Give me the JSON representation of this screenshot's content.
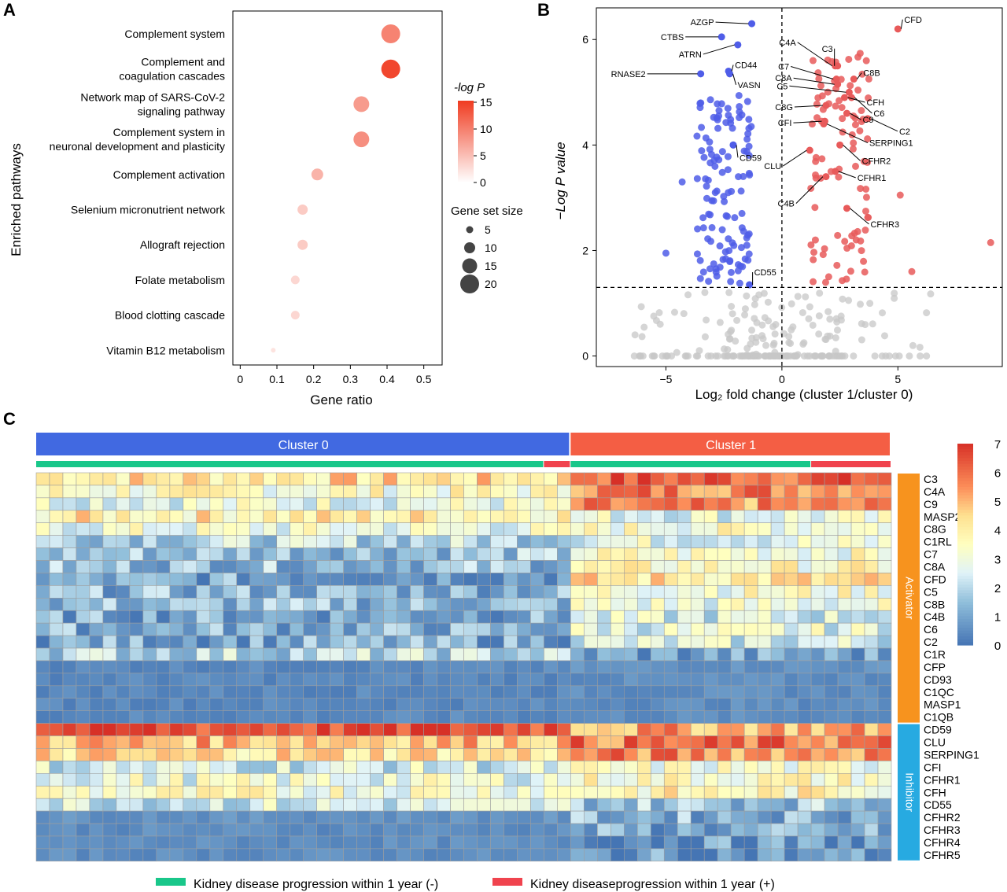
{
  "panels": {
    "a": "A",
    "b": "B",
    "c": "C"
  },
  "chart_data": [
    {
      "type": "scatter",
      "kind": "dot plot",
      "xlabel": "Gene ratio",
      "ylabel": "Enriched pathways",
      "xlim": [
        -0.02,
        0.55
      ],
      "xticks": [
        0,
        0.1,
        0.2,
        0.3,
        0.4,
        0.5
      ],
      "xtick_labels": [
        "0",
        "0.1",
        "0.2",
        "0.3",
        "0.4",
        "0.5"
      ],
      "categories": [
        "Complement system",
        "Complement and\ncoagulation cascades",
        "Network map of SARS-CoV-2\nsignaling pathway",
        "Complement system in\nneuronal development and plasticity",
        "Complement activation",
        "Selenium micronutrient network",
        "Allograft rejection",
        "Folate metabolism",
        "Blood clotting cascade",
        "Vitamin B12 metabolism"
      ],
      "gene_ratio": [
        0.41,
        0.41,
        0.33,
        0.33,
        0.21,
        0.17,
        0.17,
        0.15,
        0.15,
        0.09
      ],
      "neg_log_p": [
        9,
        14,
        7,
        8,
        5,
        3,
        3,
        2,
        2,
        1
      ],
      "gene_set_size": [
        20,
        20,
        16,
        16,
        11,
        9,
        9,
        7,
        7,
        2
      ],
      "color_legend": {
        "title": "-log P",
        "ticks": [
          0,
          5,
          10,
          15
        ],
        "colors": [
          "#ffffff",
          "#f03b20"
        ]
      },
      "size_legend": {
        "title": "Gene set size",
        "values": [
          5,
          10,
          15,
          20
        ]
      },
      "grid": false
    },
    {
      "type": "scatter",
      "kind": "volcano plot",
      "xlabel": "Log₂ fold change (cluster 1/cluster 0)",
      "ylabel": "−Log P value",
      "xlim": [
        -8,
        9.5
      ],
      "ylim": [
        -0.2,
        6.6
      ],
      "xticks": [
        -5,
        0,
        5
      ],
      "xtick_labels": [
        "−5",
        "0",
        "5"
      ],
      "yticks": [
        0,
        2,
        4,
        6
      ],
      "ytick_labels": [
        "0",
        "2",
        "4",
        "6"
      ],
      "threshold_y": 1.3,
      "colors": {
        "down": "#4f5de8",
        "up": "#e85a5a",
        "ns": "#c7c7c7"
      },
      "labeled_genes": [
        {
          "name": "AZGP",
          "x": -1.3,
          "y": 6.3,
          "dir": "down"
        },
        {
          "name": "CTBS",
          "x": -2.6,
          "y": 6.05,
          "dir": "down"
        },
        {
          "name": "ATRN",
          "x": -1.9,
          "y": 5.9,
          "dir": "down"
        },
        {
          "name": "CD44",
          "x": -2.3,
          "y": 5.4,
          "dir": "down"
        },
        {
          "name": "VASN",
          "x": -2.25,
          "y": 5.35,
          "dir": "down"
        },
        {
          "name": "RNASE2",
          "x": -3.5,
          "y": 5.35,
          "dir": "down"
        },
        {
          "name": "CD59",
          "x": -2.1,
          "y": 4.0,
          "dir": "down"
        },
        {
          "name": "CD55",
          "x": -1.4,
          "y": 1.35,
          "dir": "down"
        },
        {
          "name": "CFD",
          "x": 5.0,
          "y": 6.2,
          "dir": "up"
        },
        {
          "name": "C3",
          "x": 2.4,
          "y": 5.5,
          "dir": "up"
        },
        {
          "name": "C4A",
          "x": 2.3,
          "y": 5.5,
          "dir": "up"
        },
        {
          "name": "C7",
          "x": 2.35,
          "y": 5.25,
          "dir": "up"
        },
        {
          "name": "C8B",
          "x": 3.1,
          "y": 5.25,
          "dir": "up"
        },
        {
          "name": "C8A",
          "x": 2.4,
          "y": 5.15,
          "dir": "up"
        },
        {
          "name": "C5",
          "x": 2.9,
          "y": 5.0,
          "dir": "up"
        },
        {
          "name": "CFH",
          "x": 2.7,
          "y": 4.9,
          "dir": "up"
        },
        {
          "name": "C6",
          "x": 3.0,
          "y": 4.9,
          "dir": "up"
        },
        {
          "name": "C8G",
          "x": 1.9,
          "y": 4.75,
          "dir": "up"
        },
        {
          "name": "C9",
          "x": 2.8,
          "y": 4.6,
          "dir": "up"
        },
        {
          "name": "CFI",
          "x": 1.85,
          "y": 4.45,
          "dir": "up"
        },
        {
          "name": "C2",
          "x": 3.7,
          "y": 4.5,
          "dir": "up"
        },
        {
          "name": "SERPING1",
          "x": 1.8,
          "y": 4.4,
          "dir": "up"
        },
        {
          "name": "CFHR2",
          "x": 2.5,
          "y": 4.0,
          "dir": "up"
        },
        {
          "name": "CLU",
          "x": 1.2,
          "y": 3.9,
          "dir": "up"
        },
        {
          "name": "CFHR1",
          "x": 2.3,
          "y": 3.5,
          "dir": "up"
        },
        {
          "name": "C4B",
          "x": 1.9,
          "y": 3.4,
          "dir": "up"
        },
        {
          "name": "CFHR3",
          "x": 2.8,
          "y": 2.8,
          "dir": "up"
        }
      ],
      "grid": false
    },
    {
      "type": "heatmap",
      "column_groups": [
        {
          "name": "Cluster 0",
          "columns": 40,
          "color": "#4169e1"
        },
        {
          "name": "Cluster 1",
          "columns": 24,
          "color": "#f45e44"
        }
      ],
      "annotation_bar": {
        "colors": {
          "neg": "#19c78a",
          "pos": "#f0434e"
        },
        "segments": [
          {
            "start": 0,
            "end": 38,
            "status": "neg"
          },
          {
            "start": 38,
            "end": 40,
            "status": "pos"
          },
          {
            "start": 40,
            "end": 58,
            "status": "neg"
          },
          {
            "start": 58,
            "end": 64,
            "status": "pos"
          }
        ]
      },
      "rows": [
        "C3",
        "C4A",
        "C9",
        "MASP2",
        "C8G",
        "C1RL",
        "C7",
        "C8A",
        "CFD",
        "C5",
        "C8B",
        "C4B",
        "C6",
        "C2",
        "C1R",
        "CFP",
        "CD93",
        "C1QC",
        "MASP1",
        "C1QB",
        "CD59",
        "CLU",
        "SERPING1",
        "CFI",
        "CFHR1",
        "CFH",
        "CD55",
        "CFHR2",
        "CFHR3",
        "CFHR4",
        "CFHR5"
      ],
      "row_groups": [
        {
          "name": "Activator",
          "start": 0,
          "end": 20,
          "color": "#f7931e"
        },
        {
          "name": "Inhibitor",
          "start": 20,
          "end": 31,
          "color": "#27aae1"
        }
      ],
      "row_means_cluster0": [
        4.3,
        3.4,
        2.9,
        4.0,
        2.9,
        2.0,
        1.6,
        1.5,
        1.0,
        1.3,
        1.4,
        1.1,
        1.2,
        1.1,
        2.0,
        0.4,
        0.4,
        0.4,
        0.4,
        0.4,
        6.6,
        5.0,
        4.4,
        2.4,
        2.9,
        3.3,
        2.4,
        0.6,
        0.5,
        0.5,
        0.5
      ],
      "row_means_cluster1": [
        6.3,
        5.8,
        5.4,
        2.8,
        3.3,
        2.8,
        3.3,
        3.5,
        4.2,
        3.3,
        2.9,
        2.4,
        2.7,
        2.4,
        0.9,
        0.6,
        0.5,
        0.5,
        0.5,
        0.5,
        5.2,
        5.8,
        5.6,
        3.1,
        3.5,
        3.7,
        1.7,
        1.3,
        1.0,
        0.7,
        0.7
      ],
      "colorbar": {
        "min": 0,
        "max": 7,
        "ticks": [
          0,
          1,
          2,
          3,
          4,
          5,
          6,
          7
        ]
      },
      "legend": [
        {
          "label": "Kidney disease progression within 1 year (-)",
          "color": "#19c78a"
        },
        {
          "label": "Kidney diseaseprogression within 1 year (+)",
          "color": "#f0434e"
        }
      ]
    }
  ]
}
